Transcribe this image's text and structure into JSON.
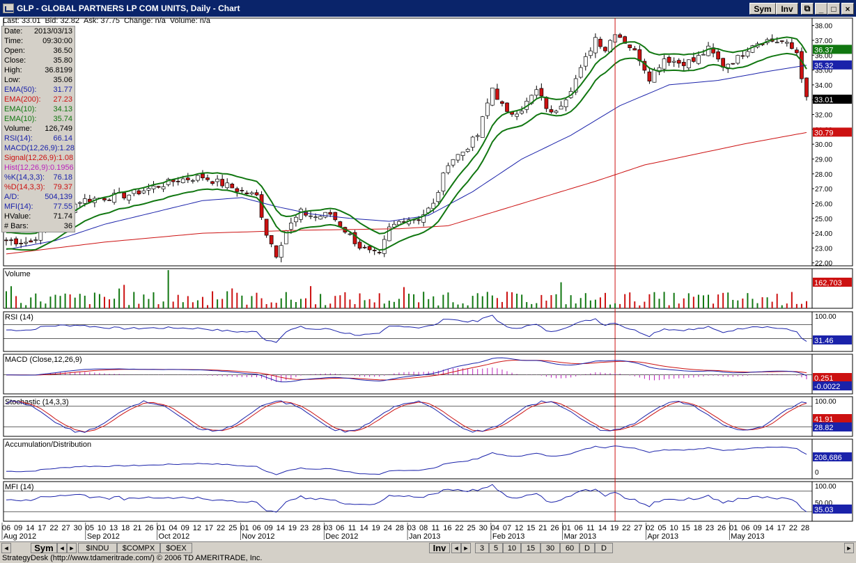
{
  "window": {
    "title": "GLP - GLOBAL PARTNERS LP COM UNITS, Daily - Chart",
    "sym_label": "Sym",
    "inv_label": "Inv"
  },
  "quote": {
    "last": "Last: 33.01",
    "bid": "Bid: 32.82",
    "ask": "Ask: 37.75",
    "change": "Change: n/a",
    "volume": "Volume: n/a"
  },
  "info": [
    {
      "label": "Date:",
      "value": "2013/03/13",
      "color": "#000000"
    },
    {
      "label": "Time:",
      "value": "09:30:00",
      "color": "#000000"
    },
    {
      "label": "Open:",
      "value": "36.50",
      "color": "#000000"
    },
    {
      "label": "Close:",
      "value": "35.80",
      "color": "#000000"
    },
    {
      "label": "High:",
      "value": "36.8199",
      "color": "#000000"
    },
    {
      "label": "Low:",
      "value": "35.06",
      "color": "#000000"
    },
    {
      "label": "EMA(50):",
      "value": "31.77",
      "color": "#1a22aa"
    },
    {
      "label": "EMA(200):",
      "value": "27.23",
      "color": "#cc1111"
    },
    {
      "label": "EMA(10):",
      "value": "34.13",
      "color": "#117711"
    },
    {
      "label": "EMA(10):",
      "value": "35.74",
      "color": "#117711"
    },
    {
      "label": "Volume:",
      "value": "126,749",
      "color": "#000000"
    },
    {
      "label": "RSI(14):",
      "value": "66.14",
      "color": "#1a22aa"
    },
    {
      "label": "MACD(12,26,9):",
      "value": "1.28",
      "color": "#1a22aa"
    },
    {
      "label": "Signal(12,26,9):",
      "value": "1.08",
      "color": "#cc1111"
    },
    {
      "label": "Hist(12,26,9):",
      "value": "0.1956",
      "color": "#bb22bb"
    },
    {
      "label": "%K(14,3,3):",
      "value": "76.18",
      "color": "#1a22aa"
    },
    {
      "label": "%D(14,3,3):",
      "value": "79.37",
      "color": "#cc1111"
    },
    {
      "label": "A/D:",
      "value": "504,139",
      "color": "#1a22aa"
    },
    {
      "label": "MFI(14):",
      "value": "77.55",
      "color": "#1a22aa"
    },
    {
      "label": "HValue:",
      "value": "71.74",
      "color": "#000000"
    },
    {
      "label": "# Bars:",
      "value": "36",
      "color": "#000000"
    }
  ],
  "price_axis": {
    "ticks": [
      "38.00",
      "37.00",
      "36.00",
      "35.00",
      "34.00",
      "33.00",
      "32.00",
      "31.00",
      "30.00",
      "29.00",
      "28.00",
      "27.00",
      "26.00",
      "25.00",
      "24.00",
      "23.00",
      "22.00"
    ],
    "tags": [
      {
        "value": 36.37,
        "text": "36.37",
        "bg": "#117711",
        "fg": "#ffffff"
      },
      {
        "value": 35.32,
        "text": "35.32",
        "bg": "#1a22aa",
        "fg": "#ffffff"
      },
      {
        "value": 33.01,
        "text": "33.01",
        "bg": "#000000",
        "fg": "#ffffff"
      },
      {
        "value": 30.79,
        "text": "30.79",
        "bg": "#cc1111",
        "fg": "#ffffff"
      }
    ]
  },
  "panels": {
    "volume": {
      "label": "Volume",
      "tag": "162,703"
    },
    "rsi": {
      "label": "RSI (14)",
      "top": "100.00",
      "tag": "31.46"
    },
    "macd": {
      "label": "MACD (Close,12,26,9)",
      "tag_signal": "0.251",
      "tag_macd": "-0.0022"
    },
    "stoch": {
      "label": "Stochastic (14,3,3)",
      "top": "100.00",
      "tag_k": "41.91",
      "tag_d": "28.82"
    },
    "ad": {
      "label": "Accumulation/Distribution",
      "tag": "208,686",
      "bottom": "0"
    },
    "mfi": {
      "label": "MFI (14)",
      "top": "100.00",
      "mid": "50.00",
      "tag": "35.03"
    }
  },
  "x_axis": {
    "days": [
      "06",
      "09",
      "14",
      "17",
      "22",
      "27",
      "30",
      "05",
      "10",
      "13",
      "18",
      "21",
      "26",
      "01",
      "04",
      "09",
      "12",
      "17",
      "22",
      "25",
      "01",
      "06",
      "09",
      "14",
      "19",
      "23",
      "28",
      "03",
      "06",
      "11",
      "14",
      "19",
      "24",
      "28",
      "03",
      "08",
      "11",
      "16",
      "22",
      "25",
      "30",
      "04",
      "07",
      "12",
      "15",
      "21",
      "26",
      "01",
      "06",
      "11",
      "14",
      "19",
      "22",
      "27",
      "02",
      "05",
      "10",
      "15",
      "18",
      "23",
      "26",
      "01",
      "06",
      "09",
      "14",
      "17",
      "22",
      "28"
    ],
    "months": [
      {
        "text": "Aug 2012",
        "index": 0
      },
      {
        "text": "Sep 2012",
        "index": 7
      },
      {
        "text": "Oct 2012",
        "index": 13
      },
      {
        "text": "Nov 2012",
        "index": 20
      },
      {
        "text": "Dec 2012",
        "index": 27
      },
      {
        "text": "Jan 2013",
        "index": 34
      },
      {
        "text": "Feb 2013",
        "index": 41
      },
      {
        "text": "Mar 2013",
        "index": 47
      },
      {
        "text": "Apr 2013",
        "index": 54
      },
      {
        "text": "May 2013",
        "index": 61
      }
    ]
  },
  "tabs": {
    "sym": "Sym",
    "symbols": [
      "$INDU",
      "$COMPX",
      "$OEX"
    ],
    "inv": "Inv",
    "periods": [
      "3",
      "5",
      "10",
      "15",
      "30",
      "60",
      "D",
      "D"
    ]
  },
  "status": "StrategyDesk (http://www.tdameritrade.com/) © 2006 TD AMERITRADE, Inc.",
  "chart_data": {
    "type": "candlestick",
    "symbol": "GLP",
    "interval": "Daily",
    "ylim": [
      21.8,
      38.5
    ],
    "points": [
      [
        0,
        23.5
      ],
      [
        5,
        23.4
      ],
      [
        8,
        24.5
      ],
      [
        12,
        25.5
      ],
      [
        15,
        26.2
      ],
      [
        20,
        26.4
      ],
      [
        25,
        26.6
      ],
      [
        30,
        27.1
      ],
      [
        35,
        27.6
      ],
      [
        40,
        27.8
      ],
      [
        45,
        27.2
      ],
      [
        48,
        26.8
      ],
      [
        51,
        26.5
      ],
      [
        53,
        24.0
      ],
      [
        55,
        22.6
      ],
      [
        57,
        24.2
      ],
      [
        60,
        25.4
      ],
      [
        63,
        25.1
      ],
      [
        66,
        25.3
      ],
      [
        69,
        24.2
      ],
      [
        72,
        23.1
      ],
      [
        74,
        22.7
      ],
      [
        76,
        22.5
      ],
      [
        78,
        24.3
      ],
      [
        81,
        25.0
      ],
      [
        84,
        25.0
      ],
      [
        87,
        25.9
      ],
      [
        90,
        28.8
      ],
      [
        93,
        29.5
      ],
      [
        96,
        30.6
      ],
      [
        99,
        33.8
      ],
      [
        102,
        32.0
      ],
      [
        105,
        32.4
      ],
      [
        108,
        33.6
      ],
      [
        111,
        32.0
      ],
      [
        114,
        33.2
      ],
      [
        117,
        35.0
      ],
      [
        120,
        37.2
      ],
      [
        122,
        36.4
      ],
      [
        124,
        37.6
      ],
      [
        127,
        36.6
      ],
      [
        129,
        35.8
      ],
      [
        131,
        34.5
      ],
      [
        134,
        35.8
      ],
      [
        137,
        35.5
      ],
      [
        140,
        35.6
      ],
      [
        143,
        36.4
      ],
      [
        146,
        35.3
      ],
      [
        149,
        35.8
      ],
      [
        152,
        36.8
      ],
      [
        155,
        37.0
      ],
      [
        158,
        36.9
      ],
      [
        161,
        36.2
      ],
      [
        163,
        33.0
      ]
    ],
    "ema50_values": [
      [
        0,
        22.9
      ],
      [
        10,
        23.5
      ],
      [
        20,
        24.6
      ],
      [
        30,
        25.4
      ],
      [
        40,
        26.2
      ],
      [
        48,
        26.4
      ],
      [
        55,
        25.8
      ],
      [
        62,
        25.3
      ],
      [
        70,
        25.0
      ],
      [
        78,
        24.8
      ],
      [
        86,
        25.2
      ],
      [
        95,
        26.8
      ],
      [
        105,
        29.0
      ],
      [
        115,
        30.6
      ],
      [
        125,
        32.6
      ],
      [
        135,
        34.0
      ],
      [
        145,
        34.3
      ],
      [
        155,
        34.9
      ],
      [
        163,
        35.32
      ]
    ],
    "ema200_values": [
      [
        0,
        22.6
      ],
      [
        20,
        23.4
      ],
      [
        40,
        24.0
      ],
      [
        60,
        24.2
      ],
      [
        80,
        24.3
      ],
      [
        90,
        24.5
      ],
      [
        100,
        25.5
      ],
      [
        110,
        26.5
      ],
      [
        120,
        27.5
      ],
      [
        130,
        28.6
      ],
      [
        140,
        29.3
      ],
      [
        150,
        30.0
      ],
      [
        163,
        30.79
      ]
    ]
  }
}
